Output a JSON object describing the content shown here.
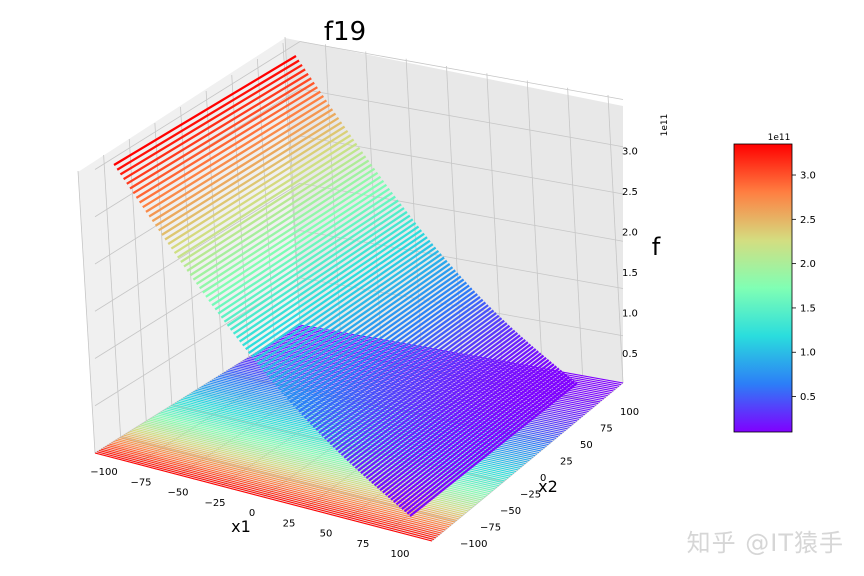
{
  "chart_data": {
    "type": "surface",
    "title": "f19",
    "xlabel": "x1",
    "ylabel": "x2",
    "zlabel": "f",
    "colormap": "rainbow",
    "x_range": [
      -100,
      100
    ],
    "y_range": [
      -100,
      100
    ],
    "z_range": [
      10000000000.0,
      335000000000.0
    ],
    "z_offset_text": "1e11",
    "x_ticks": [
      "−100",
      "−75",
      "−50",
      "−25",
      "0",
      "25",
      "50",
      "75",
      "100"
    ],
    "y_ticks": [
      "−100",
      "−75",
      "−50",
      "−25",
      "0",
      "25",
      "50",
      "75",
      "100"
    ],
    "z_ticks": [
      "0.5",
      "1.0",
      "1.5",
      "2.0",
      "2.5",
      "3.0"
    ],
    "z_tick_values": [
      0.5,
      1.0,
      1.5,
      2.0,
      2.5,
      3.0
    ],
    "colorbar": {
      "ticks": [
        "0.5",
        "1.0",
        "1.5",
        "2.0",
        "2.5",
        "3.0"
      ],
      "tick_values": [
        0.5,
        1.0,
        1.5,
        2.0,
        2.5,
        3.0
      ],
      "offset_text": "1e11",
      "range": [
        0.1,
        3.35
      ]
    },
    "colormap_stops": [
      "#8000ff",
      "#2c7ef7",
      "#2adddd",
      "#80ffb4",
      "#d4dd80",
      "#ff7e41",
      "#ff0000"
    ]
  },
  "watermark": "知乎 @IT猿手"
}
